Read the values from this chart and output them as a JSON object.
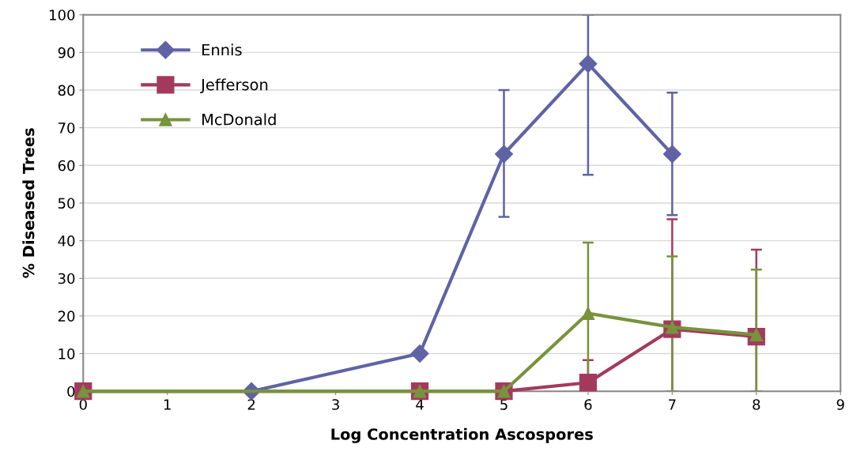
{
  "chart_data": {
    "type": "line",
    "xlabel": "Log Concentration Ascospores",
    "ylabel": "% Diseased Trees",
    "xlim": [
      0,
      9
    ],
    "xticks": [
      0,
      1,
      2,
      3,
      4,
      5,
      6,
      7,
      8,
      9
    ],
    "ylim": [
      0,
      100
    ],
    "yticks": [
      0,
      10,
      20,
      30,
      40,
      50,
      60,
      70,
      80,
      90,
      100
    ],
    "grid": "y",
    "legend": "top left",
    "series": [
      {
        "name": "Ennis",
        "color": "#5f63a5",
        "marker": "diamond",
        "x": [
          0,
          2,
          4,
          5,
          6,
          7
        ],
        "values": [
          0,
          0,
          10,
          63,
          87,
          63
        ],
        "errors": [
          null,
          null,
          null,
          [
            46.3,
            80
          ],
          [
            57.5,
            100
          ],
          [
            46.8,
            79.3
          ]
        ]
      },
      {
        "name": "Jefferson",
        "color": "#a33a5e",
        "marker": "square",
        "x": [
          0,
          4,
          5,
          6,
          7,
          8
        ],
        "values": [
          0,
          0,
          0,
          2.3,
          16.5,
          14.5
        ],
        "errors": [
          null,
          null,
          null,
          [
            0,
            8.3
          ],
          [
            0,
            45.7
          ],
          [
            0,
            37.6
          ]
        ]
      },
      {
        "name": "McDonald",
        "color": "#77933c",
        "marker": "triangle",
        "x": [
          0,
          4,
          5,
          6,
          7,
          8
        ],
        "values": [
          0,
          0,
          0,
          20.7,
          17,
          15
        ],
        "errors": [
          null,
          null,
          null,
          [
            0,
            39.5
          ],
          [
            0,
            35.8
          ],
          [
            0,
            32.3
          ]
        ]
      }
    ]
  }
}
